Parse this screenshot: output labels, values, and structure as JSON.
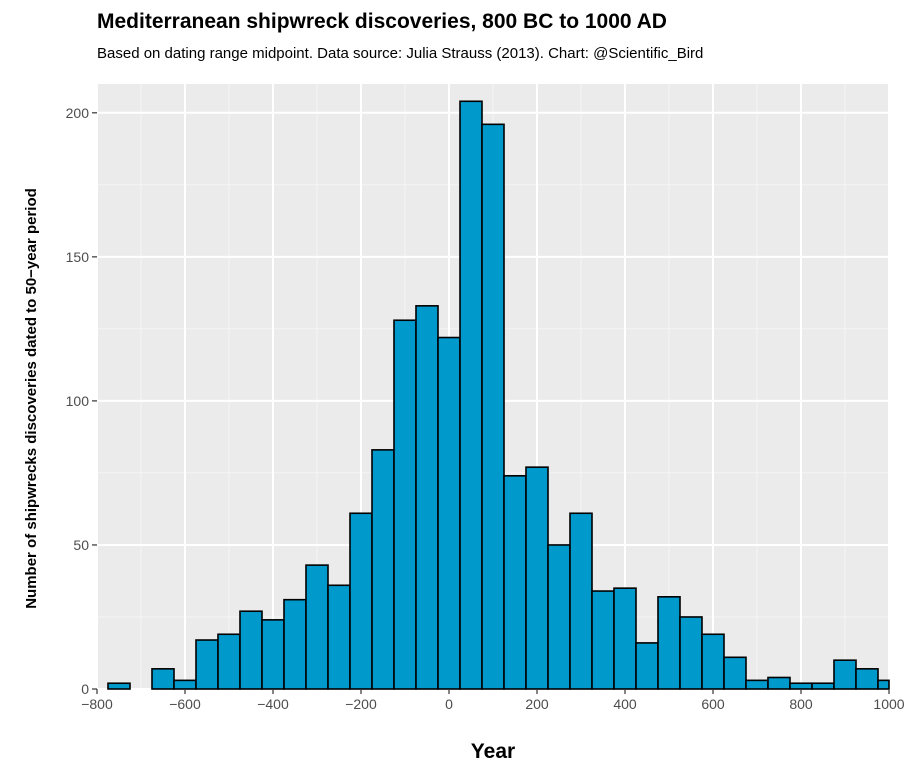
{
  "chart_data": {
    "type": "bar",
    "title": "Mediterranean shipwreck discoveries, 800 BC to 1000 AD",
    "subtitle": "Based on dating range midpoint. Data source: Julia Strauss (2013). Chart: @Scientific_Bird",
    "xlabel": "Year",
    "ylabel": "Number of shipwrecks discoveries dated to 50−year period",
    "xlim": [
      -800,
      1000
    ],
    "ylim": [
      0,
      210
    ],
    "x_ticks": [
      -800,
      -600,
      -400,
      -200,
      0,
      200,
      400,
      600,
      800,
      1000
    ],
    "x_tick_labels": [
      "−800",
      "−600",
      "−400",
      "−200",
      "0",
      "200",
      "400",
      "600",
      "800",
      "1000"
    ],
    "y_ticks": [
      0,
      50,
      100,
      150,
      200
    ],
    "y_tick_labels": [
      "0",
      "50",
      "100",
      "150",
      "200"
    ],
    "grid": true,
    "bin_width": 50,
    "bin_starts": [
      -775,
      -725,
      -675,
      -625,
      -575,
      -525,
      -475,
      -425,
      -375,
      -325,
      -275,
      -225,
      -175,
      -125,
      -75,
      -25,
      25,
      75,
      125,
      175,
      225,
      275,
      325,
      375,
      425,
      475,
      525,
      575,
      625,
      675,
      725,
      775,
      825,
      875,
      925,
      975
    ],
    "values": [
      2,
      0,
      7,
      3,
      17,
      19,
      27,
      24,
      31,
      43,
      36,
      61,
      83,
      128,
      133,
      122,
      204,
      196,
      74,
      77,
      50,
      61,
      34,
      35,
      16,
      32,
      25,
      19,
      11,
      3,
      4,
      2,
      2,
      10,
      7,
      3
    ],
    "colors": {
      "bar_fill": "#0099cc",
      "bar_stroke": "#000000",
      "panel_background": "#ebebeb",
      "grid_major": "#ffffff",
      "grid_minor": "#f5f5f5"
    }
  }
}
